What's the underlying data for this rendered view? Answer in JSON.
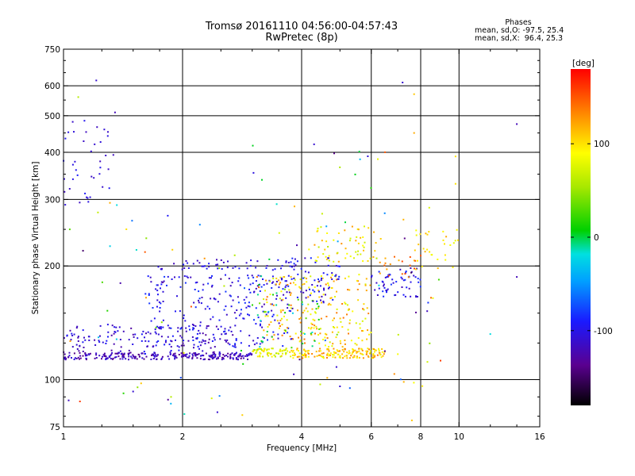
{
  "chart_data": {
    "type": "scatter",
    "title": "Tromsø 20161110 04:56:00-04:57:43",
    "subtitle": "RwPretec (8p)",
    "xlabel": "Frequency [MHz]",
    "ylabel": "Stationary phase Virtual Height [km]",
    "x_scale": "log2",
    "y_scale": "log",
    "xlim": [
      1,
      16
    ],
    "ylim": [
      75,
      750
    ],
    "x_ticks": [
      1,
      2,
      4,
      6,
      8,
      10,
      16
    ],
    "y_ticks": [
      75,
      100,
      200,
      300,
      400,
      500,
      600,
      750
    ],
    "x_grid": [
      2,
      4,
      6,
      8,
      10
    ],
    "y_grid": [
      100,
      200,
      300,
      400,
      500,
      600
    ],
    "colorbar": {
      "label": "[deg]",
      "range": [
        -180,
        180
      ],
      "ticks": [
        100,
        0,
        -100
      ]
    },
    "stats": {
      "heading": "Phases",
      "line_o": "mean, sd,O: -97.5, 25.4",
      "line_x": "mean, sd,X:  96.4, 25.3"
    },
    "clusters": [
      {
        "fmin": 1.0,
        "fmax": 3.0,
        "hmin": 113,
        "hmax": 118,
        "phmin": -140,
        "phmax": -100,
        "n": 260
      },
      {
        "fmin": 1.0,
        "fmax": 2.8,
        "hmin": 118,
        "hmax": 140,
        "phmin": -130,
        "phmax": -90,
        "n": 150
      },
      {
        "fmin": 3.0,
        "fmax": 3.8,
        "hmin": 115,
        "hmax": 121,
        "phmin": 50,
        "phmax": 110,
        "n": 70
      },
      {
        "fmin": 3.8,
        "fmax": 6.5,
        "hmin": 114,
        "hmax": 121,
        "phmin": 80,
        "phmax": 140,
        "n": 160
      },
      {
        "fmin": 1.6,
        "fmax": 3.8,
        "hmin": 122,
        "hmax": 190,
        "phmin": -120,
        "phmax": -80,
        "n": 240
      },
      {
        "fmin": 3.2,
        "fmax": 6.0,
        "hmin": 122,
        "hmax": 190,
        "phmin": 70,
        "phmax": 140,
        "n": 220
      },
      {
        "fmin": 3.0,
        "fmax": 4.5,
        "hmin": 120,
        "hmax": 180,
        "phmin": -30,
        "phmax": 40,
        "n": 40
      },
      {
        "fmin": 3.5,
        "fmax": 5.0,
        "hmin": 160,
        "hmax": 210,
        "phmin": -120,
        "phmax": -80,
        "n": 70
      },
      {
        "fmin": 1.7,
        "fmax": 4.0,
        "hmin": 195,
        "hmax": 208,
        "phmin": -120,
        "phmax": -90,
        "n": 50
      },
      {
        "fmin": 4.3,
        "fmax": 6.2,
        "hmin": 205,
        "hmax": 255,
        "phmin": 60,
        "phmax": 130,
        "n": 60
      },
      {
        "fmin": 6.0,
        "fmax": 8.0,
        "hmin": 165,
        "hmax": 200,
        "phmin": -120,
        "phmax": -80,
        "n": 60
      },
      {
        "fmin": 6.3,
        "fmax": 8.0,
        "hmin": 185,
        "hmax": 215,
        "phmin": 110,
        "phmax": 160,
        "n": 20
      },
      {
        "fmin": 7.7,
        "fmax": 10.0,
        "hmin": 195,
        "hmax": 250,
        "phmin": 80,
        "phmax": 120,
        "n": 30
      },
      {
        "fmin": 1.0,
        "fmax": 1.35,
        "hmin": 290,
        "hmax": 500,
        "phmin": -120,
        "phmax": -90,
        "n": 40
      },
      {
        "fmin": 1.0,
        "fmax": 3.0,
        "hmin": 80,
        "hmax": 300,
        "phmin": -160,
        "phmax": 160,
        "n": 50
      },
      {
        "fmin": 3.0,
        "fmax": 9.0,
        "hmin": 90,
        "hmax": 450,
        "phmin": -160,
        "phmax": 160,
        "n": 60
      }
    ],
    "extra_points": [
      {
        "f": 1.21,
        "h": 620,
        "ph": -110
      },
      {
        "f": 1.09,
        "h": 560,
        "ph": 60
      },
      {
        "f": 1.35,
        "h": 510,
        "ph": -120
      },
      {
        "f": 7.2,
        "h": 612,
        "ph": -110
      },
      {
        "f": 7.7,
        "h": 570,
        "ph": 110
      },
      {
        "f": 7.7,
        "h": 450,
        "ph": 120
      },
      {
        "f": 14.0,
        "h": 475,
        "ph": -120
      },
      {
        "f": 6.5,
        "h": 400,
        "ph": 150
      },
      {
        "f": 4.3,
        "h": 420,
        "ph": -110
      },
      {
        "f": 9.8,
        "h": 390,
        "ph": 100
      },
      {
        "f": 9.8,
        "h": 330,
        "ph": 100
      },
      {
        "f": 14.0,
        "h": 187,
        "ph": -120
      },
      {
        "f": 12.0,
        "h": 132,
        "ph": -20
      },
      {
        "f": 1.5,
        "h": 93,
        "ph": -110
      },
      {
        "f": 1.87,
        "h": 90,
        "ph": 60
      },
      {
        "f": 2.45,
        "h": 82,
        "ph": -110
      },
      {
        "f": 5.0,
        "h": 96,
        "ph": -110
      },
      {
        "f": 7.6,
        "h": 78,
        "ph": 110
      },
      {
        "f": 4.9,
        "h": 108,
        "ph": -110
      }
    ]
  }
}
